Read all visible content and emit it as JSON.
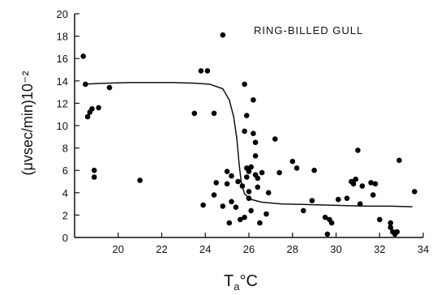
{
  "chart_data": {
    "type": "scatter",
    "annotation": "RING-BILLED GULL",
    "ylabel": "(μvsec/min)10⁻²",
    "xlabel_main": "T",
    "xlabel_sub": "a",
    "xlabel_unit": "°C",
    "xlim": [
      18,
      34
    ],
    "ylim": [
      0,
      20
    ],
    "x_ticks": [
      20,
      22,
      24,
      26,
      28,
      30,
      32,
      34
    ],
    "y_ticks": [
      0,
      2,
      4,
      6,
      8,
      10,
      12,
      14,
      16,
      18,
      20
    ],
    "grid": false,
    "points": [
      [
        18.4,
        16.2
      ],
      [
        18.5,
        13.7
      ],
      [
        18.6,
        10.8
      ],
      [
        18.7,
        11.2
      ],
      [
        18.8,
        11.5
      ],
      [
        18.9,
        6.0
      ],
      [
        18.9,
        5.4
      ],
      [
        19.1,
        11.6
      ],
      [
        19.6,
        13.4
      ],
      [
        21.0,
        5.1
      ],
      [
        23.5,
        11.1
      ],
      [
        23.8,
        14.9
      ],
      [
        24.1,
        14.9
      ],
      [
        23.9,
        2.9
      ],
      [
        24.4,
        11.1
      ],
      [
        24.4,
        3.8
      ],
      [
        24.5,
        4.9
      ],
      [
        24.8,
        18.1
      ],
      [
        24.8,
        2.8
      ],
      [
        25.0,
        5.9
      ],
      [
        25.0,
        4.8
      ],
      [
        25.1,
        1.3
      ],
      [
        25.2,
        5.5
      ],
      [
        25.2,
        3.2
      ],
      [
        25.4,
        2.7
      ],
      [
        25.5,
        5.0
      ],
      [
        25.6,
        1.6
      ],
      [
        25.7,
        4.6
      ],
      [
        25.8,
        1.8
      ],
      [
        25.8,
        13.7
      ],
      [
        25.8,
        9.5
      ],
      [
        25.9,
        10.9
      ],
      [
        25.9,
        6.2
      ],
      [
        25.9,
        5.4
      ],
      [
        26.0,
        5.9
      ],
      [
        26.0,
        4.1
      ],
      [
        26.0,
        3.5
      ],
      [
        26.1,
        2.4
      ],
      [
        26.1,
        6.3
      ],
      [
        26.2,
        12.3
      ],
      [
        26.2,
        9.3
      ],
      [
        26.3,
        8.5
      ],
      [
        26.3,
        7.3
      ],
      [
        26.3,
        5.6
      ],
      [
        26.4,
        4.5
      ],
      [
        26.4,
        5.3
      ],
      [
        26.5,
        1.3
      ],
      [
        26.6,
        5.8
      ],
      [
        26.8,
        2.1
      ],
      [
        26.9,
        4.0
      ],
      [
        27.2,
        8.8
      ],
      [
        27.4,
        5.8
      ],
      [
        28.0,
        6.8
      ],
      [
        28.2,
        6.2
      ],
      [
        28.5,
        2.4
      ],
      [
        28.9,
        3.3
      ],
      [
        29.0,
        6.0
      ],
      [
        29.5,
        1.8
      ],
      [
        29.6,
        0.3
      ],
      [
        29.7,
        1.6
      ],
      [
        29.8,
        1.3
      ],
      [
        30.1,
        3.4
      ],
      [
        30.5,
        3.5
      ],
      [
        30.7,
        5.0
      ],
      [
        30.8,
        4.8
      ],
      [
        30.9,
        5.2
      ],
      [
        31.0,
        7.8
      ],
      [
        31.1,
        3.0
      ],
      [
        31.2,
        4.6
      ],
      [
        31.6,
        4.9
      ],
      [
        31.7,
        3.8
      ],
      [
        31.8,
        4.8
      ],
      [
        32.0,
        1.6
      ],
      [
        32.5,
        1.3
      ],
      [
        32.5,
        0.9
      ],
      [
        32.6,
        0.5
      ],
      [
        32.7,
        0.3
      ],
      [
        32.8,
        0.5
      ],
      [
        32.9,
        6.9
      ],
      [
        33.6,
        4.1
      ]
    ],
    "curve": [
      [
        18.4,
        13.7
      ],
      [
        19.5,
        13.8
      ],
      [
        20.5,
        13.85
      ],
      [
        21.5,
        13.85
      ],
      [
        22.5,
        13.85
      ],
      [
        23.5,
        13.8
      ],
      [
        24.2,
        13.7
      ],
      [
        24.8,
        13.3
      ],
      [
        25.1,
        12.3
      ],
      [
        25.3,
        10.8
      ],
      [
        25.45,
        8.8
      ],
      [
        25.55,
        6.6
      ],
      [
        25.65,
        4.9
      ],
      [
        25.8,
        3.9
      ],
      [
        26.1,
        3.4
      ],
      [
        26.6,
        3.15
      ],
      [
        27.5,
        3.0
      ],
      [
        28.5,
        2.95
      ],
      [
        29.5,
        2.9
      ],
      [
        30.5,
        2.85
      ],
      [
        31.5,
        2.8
      ],
      [
        32.5,
        2.8
      ],
      [
        33.5,
        2.75
      ]
    ]
  }
}
